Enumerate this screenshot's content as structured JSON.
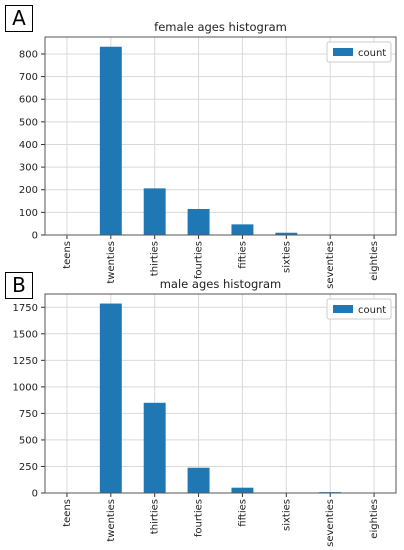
{
  "chart_data": [
    {
      "type": "bar",
      "panel_label": "A",
      "title": "female ages histogram",
      "categories": [
        "teens",
        "twenties",
        "thirties",
        "fourties",
        "fifties",
        "sixties",
        "seventies",
        "eighties"
      ],
      "series": [
        {
          "name": "count",
          "values": [
            0,
            832,
            206,
            115,
            47,
            10,
            0,
            0
          ],
          "color": "#1f77b4"
        }
      ],
      "yticks": [
        0,
        100,
        200,
        300,
        400,
        500,
        600,
        700,
        800
      ],
      "ylim": [
        0,
        875
      ],
      "grid": true,
      "legend_position": "top-right"
    },
    {
      "type": "bar",
      "panel_label": "B",
      "title": "male ages histogram",
      "categories": [
        "teens",
        "twenties",
        "thirties",
        "fourties",
        "fifties",
        "sixties",
        "seventies",
        "eighties"
      ],
      "series": [
        {
          "name": "count",
          "values": [
            0,
            1785,
            850,
            238,
            50,
            0,
            8,
            0
          ],
          "color": "#1f77b4"
        }
      ],
      "yticks": [
        0,
        250,
        500,
        750,
        1000,
        1250,
        1500,
        1750
      ],
      "ylim": [
        0,
        1875
      ],
      "grid": true,
      "legend_position": "top-right"
    }
  ]
}
